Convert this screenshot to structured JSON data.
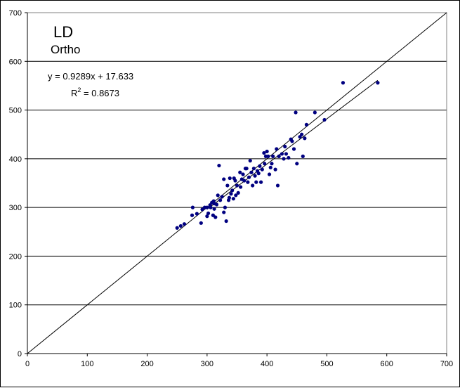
{
  "chart_data": {
    "type": "scatter",
    "title": "LD",
    "subtitle": "Ortho",
    "equation": "y = 0.9289x + 17.633",
    "r2_label": "R",
    "r2_sup": "2",
    "r2_value": " = 0.8673",
    "xlim": [
      0,
      700
    ],
    "ylim": [
      0,
      700
    ],
    "x_ticks": [
      0,
      100,
      200,
      300,
      400,
      500,
      600,
      700
    ],
    "y_ticks": [
      0,
      100,
      200,
      300,
      400,
      500,
      600,
      700
    ],
    "grid": "horizontal",
    "trendline": {
      "slope": 0.9289,
      "intercept": 17.633,
      "x_range": [
        300,
        585
      ]
    },
    "identity_line": {
      "x_range": [
        0,
        700
      ]
    },
    "marker_color": "#000080",
    "points": [
      [
        250,
        258
      ],
      [
        256,
        262
      ],
      [
        262,
        266
      ],
      [
        275,
        284
      ],
      [
        276,
        300
      ],
      [
        283,
        287
      ],
      [
        290,
        268
      ],
      [
        292,
        296
      ],
      [
        296,
        300
      ],
      [
        300,
        282
      ],
      [
        302,
        288
      ],
      [
        305,
        305
      ],
      [
        306,
        300
      ],
      [
        308,
        310
      ],
      [
        310,
        284
      ],
      [
        311,
        313
      ],
      [
        312,
        308
      ],
      [
        314,
        280
      ],
      [
        316,
        306
      ],
      [
        318,
        325
      ],
      [
        320,
        386
      ],
      [
        322,
        315
      ],
      [
        325,
        322
      ],
      [
        328,
        290
      ],
      [
        330,
        300
      ],
      [
        332,
        272
      ],
      [
        334,
        345
      ],
      [
        336,
        315
      ],
      [
        337,
        320
      ],
      [
        338,
        360
      ],
      [
        340,
        328
      ],
      [
        342,
        335
      ],
      [
        345,
        360
      ],
      [
        347,
        355
      ],
      [
        348,
        325
      ],
      [
        350,
        345
      ],
      [
        352,
        330
      ],
      [
        355,
        372
      ],
      [
        358,
        358
      ],
      [
        360,
        368
      ],
      [
        362,
        355
      ],
      [
        364,
        380
      ],
      [
        366,
        380
      ],
      [
        368,
        352
      ],
      [
        370,
        362
      ],
      [
        372,
        396
      ],
      [
        374,
        372
      ],
      [
        376,
        345
      ],
      [
        378,
        380
      ],
      [
        380,
        365
      ],
      [
        382,
        352
      ],
      [
        384,
        375
      ],
      [
        386,
        370
      ],
      [
        388,
        385
      ],
      [
        390,
        352
      ],
      [
        392,
        378
      ],
      [
        396,
        390
      ],
      [
        398,
        405
      ],
      [
        400,
        415
      ],
      [
        402,
        405
      ],
      [
        404,
        368
      ],
      [
        408,
        390
      ],
      [
        410,
        405
      ],
      [
        414,
        378
      ],
      [
        416,
        420
      ],
      [
        418,
        345
      ],
      [
        420,
        405
      ],
      [
        425,
        410
      ],
      [
        428,
        400
      ],
      [
        432,
        410
      ],
      [
        436,
        402
      ],
      [
        440,
        440
      ],
      [
        442,
        436
      ],
      [
        445,
        420
      ],
      [
        448,
        495
      ],
      [
        450,
        390
      ],
      [
        455,
        445
      ],
      [
        458,
        450
      ],
      [
        460,
        405
      ],
      [
        463,
        442
      ],
      [
        466,
        470
      ],
      [
        480,
        495
      ],
      [
        496,
        480
      ],
      [
        527,
        556
      ],
      [
        585,
        556
      ],
      [
        300,
        300
      ],
      [
        312,
        297
      ],
      [
        328,
        358
      ],
      [
        344,
        318
      ],
      [
        356,
        342
      ],
      [
        395,
        412
      ],
      [
        406,
        382
      ],
      [
        430,
        425
      ]
    ]
  }
}
